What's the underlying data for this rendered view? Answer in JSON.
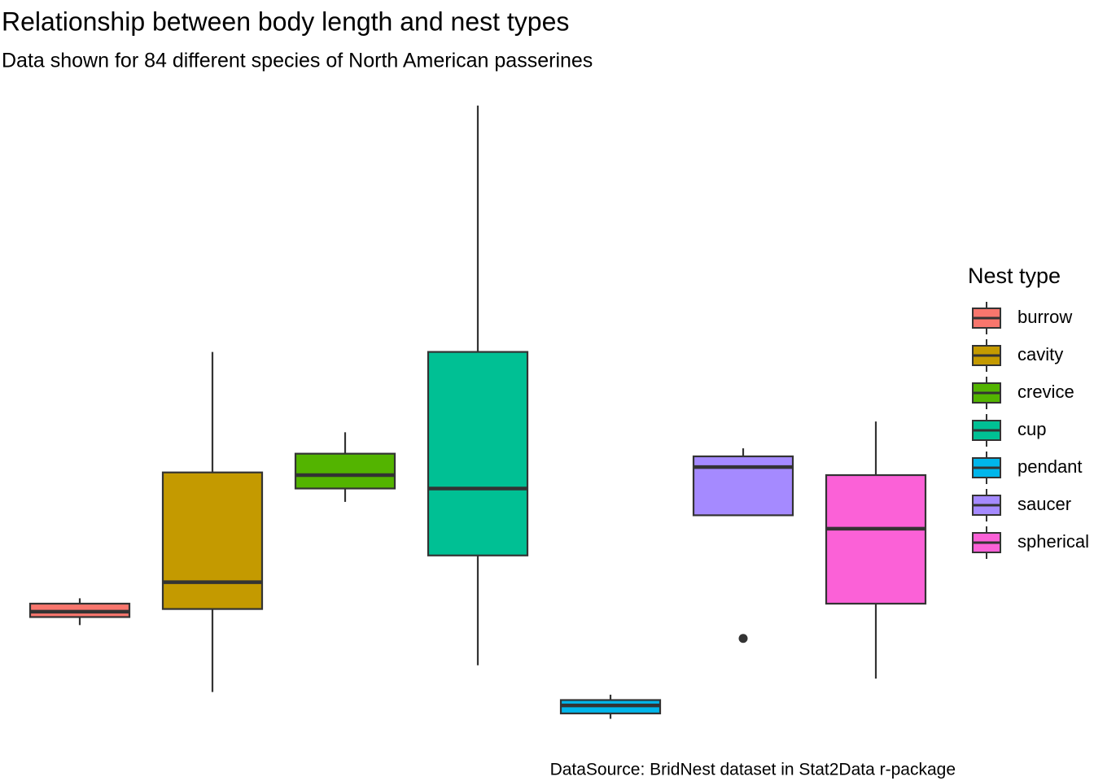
{
  "chart_data": {
    "type": "box",
    "title": "Relationship between body length and nest types",
    "subtitle": "Data shown for 84 different species of North American passerines",
    "caption": "DataSource: BridNest dataset in Stat2Data r-package",
    "legend_title": "Nest type",
    "legend": "right",
    "ylim": [
      7,
      31
    ],
    "boxes": [
      {
        "name": "burrow",
        "color": "#f8766d",
        "min": 11.0,
        "q1": 11.3,
        "median": 11.5,
        "q3": 11.8,
        "max": 12.0,
        "outliers": []
      },
      {
        "name": "cavity",
        "color": "#c49a00",
        "min": 8.5,
        "q1": 11.6,
        "median": 12.6,
        "q3": 16.7,
        "max": 21.2,
        "outliers": []
      },
      {
        "name": "crevice",
        "color": "#53b400",
        "min": 15.6,
        "q1": 16.1,
        "median": 16.6,
        "q3": 17.4,
        "max": 18.2,
        "outliers": []
      },
      {
        "name": "cup",
        "color": "#00c094",
        "min": 9.5,
        "q1": 13.6,
        "median": 16.1,
        "q3": 21.2,
        "max": 30.4,
        "outliers": []
      },
      {
        "name": "pendant",
        "color": "#00b6eb",
        "min": 7.5,
        "q1": 7.7,
        "median": 8.0,
        "q3": 8.2,
        "max": 8.4,
        "outliers": []
      },
      {
        "name": "saucer",
        "color": "#a58aff",
        "min": 15.1,
        "q1": 15.1,
        "median": 16.9,
        "q3": 17.3,
        "max": 17.6,
        "outliers": [
          10.5
        ]
      },
      {
        "name": "spherical",
        "color": "#fb61d7",
        "min": 9.0,
        "q1": 11.8,
        "median": 14.6,
        "q3": 16.6,
        "max": 18.6,
        "outliers": []
      }
    ]
  }
}
